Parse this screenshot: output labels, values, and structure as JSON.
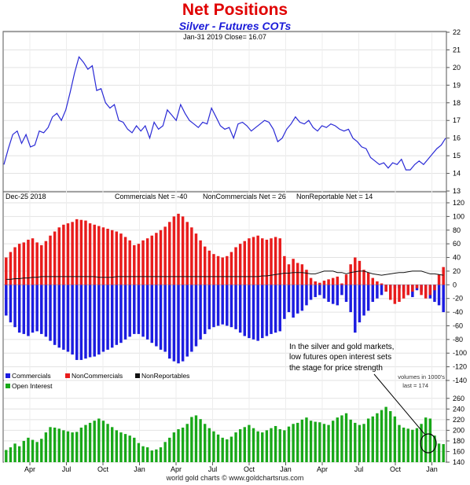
{
  "header": {
    "title": "Net Positions",
    "subtitle": "Silver - Futures COTs"
  },
  "price_panel": {
    "info": "Jan-31  2019  Close= 16.07"
  },
  "cot_panel": {
    "date_label": "Dec-25  2018",
    "commercials_net": "Commercials Net = -40",
    "noncommercials_net": "NonCommercials Net = 26",
    "nonreportable_net": "NonReportable Net = 14",
    "legend": [
      "Commercials",
      "NonCommercials",
      "NonReportables"
    ],
    "annotation": [
      "In the silver and gold markets,",
      "low  futures open interest sets",
      "the stage for price strength"
    ]
  },
  "oi_panel": {
    "legend": "Open Interest",
    "volumes_note": "volumes in 1000's",
    "last_note": "last = 174"
  },
  "footer": "world gold charts © www.goldchartsrus.com",
  "colors": {
    "price_line": "#2a2ad6",
    "commercials": "#1c1ce0",
    "noncommercials": "#e81c1c",
    "nonreportables": "#111111",
    "open_interest": "#18a818",
    "title": "#e00000",
    "subtitle": "#1a1ad8"
  },
  "chart_data": [
    {
      "type": "line",
      "series": [
        {
          "values": [
            14.5,
            15.4,
            16.2,
            16.4,
            15.7,
            16.2,
            15.5,
            15.6,
            16.4,
            16.3,
            16.6,
            17.2,
            17.4,
            17.0,
            17.6,
            18.6,
            19.7,
            20.6,
            20.3,
            19.9,
            20.1,
            18.7,
            18.8,
            18.0,
            17.7,
            17.9,
            17.0,
            16.9,
            16.5,
            16.3,
            16.7,
            16.4,
            16.7,
            16.0,
            16.9,
            16.5,
            16.7,
            17.6,
            17.3,
            17.0,
            17.9,
            17.4,
            17.0,
            16.8,
            16.6,
            16.9,
            16.8,
            17.7,
            17.2,
            16.7,
            16.5,
            16.6,
            16.0,
            16.8,
            16.9,
            16.7,
            16.4,
            16.6,
            16.8,
            17.0,
            16.9,
            16.5,
            15.8,
            16.0,
            16.5,
            16.8,
            17.2,
            16.9,
            16.8,
            17.0,
            16.6,
            16.4,
            16.7,
            16.6,
            16.8,
            16.7,
            16.5,
            16.4,
            16.5,
            16.0,
            15.8,
            15.5,
            15.4,
            14.9,
            14.7,
            14.5,
            14.6,
            14.3,
            14.6,
            14.5,
            14.8,
            14.2,
            14.2,
            14.5,
            14.7,
            14.5,
            14.8,
            15.1,
            15.4,
            15.6,
            16.0
          ]
        }
      ],
      "ylim": [
        13,
        22
      ],
      "yticks": [
        13,
        14,
        15,
        16,
        17,
        18,
        19,
        20,
        21,
        22
      ]
    },
    {
      "type": "bar",
      "series": [
        {
          "name": "Commercials",
          "values": [
            -45,
            -55,
            -62,
            -70,
            -72,
            -75,
            -70,
            -68,
            -72,
            -76,
            -82,
            -88,
            -92,
            -95,
            -98,
            -102,
            -110,
            -110,
            -108,
            -106,
            -105,
            -102,
            -98,
            -95,
            -92,
            -88,
            -85,
            -80,
            -76,
            -72,
            -72,
            -76,
            -80,
            -85,
            -90,
            -95,
            -98,
            -108,
            -112,
            -115,
            -112,
            -105,
            -98,
            -90,
            -80,
            -72,
            -65,
            -62,
            -60,
            -58,
            -60,
            -62,
            -65,
            -70,
            -75,
            -78,
            -80,
            -82,
            -78,
            -75,
            -72,
            -70,
            -68,
            -50,
            -40,
            -48,
            -42,
            -38,
            -30,
            -22,
            -18,
            -15,
            -20,
            -25,
            -28,
            -30,
            -15,
            -25,
            -40,
            -70,
            -55,
            -45,
            -38,
            -25,
            -20,
            -15,
            -10,
            -8,
            -5,
            -5,
            -10,
            -15,
            -18,
            -8,
            -10,
            -15,
            -20,
            -25,
            -30,
            -40
          ]
        },
        {
          "name": "NonCommercials",
          "values": [
            40,
            48,
            55,
            60,
            62,
            66,
            68,
            62,
            58,
            64,
            72,
            78,
            84,
            88,
            90,
            92,
            96,
            95,
            94,
            90,
            88,
            86,
            84,
            82,
            80,
            78,
            75,
            70,
            65,
            58,
            60,
            65,
            68,
            72,
            76,
            80,
            85,
            92,
            100,
            104,
            100,
            92,
            84,
            75,
            65,
            56,
            50,
            45,
            42,
            40,
            42,
            48,
            55,
            60,
            64,
            68,
            70,
            72,
            68,
            66,
            68,
            70,
            68,
            42,
            30,
            38,
            32,
            30,
            22,
            10,
            5,
            3,
            6,
            8,
            10,
            12,
            2,
            15,
            30,
            40,
            35,
            22,
            18,
            10,
            5,
            2,
            -10,
            -22,
            -28,
            -25,
            -20,
            -15,
            -10,
            -5,
            -15,
            -20,
            -15,
            -8,
            15,
            26
          ]
        },
        {
          "name": "NonReportables",
          "values": [
            8,
            8,
            9,
            9,
            10,
            10,
            11,
            11,
            12,
            12,
            12,
            12,
            12,
            12,
            12,
            12,
            12,
            12,
            12,
            12,
            12,
            11,
            11,
            11,
            11,
            12,
            12,
            12,
            12,
            12,
            12,
            12,
            12,
            12,
            12,
            12,
            12,
            12,
            12,
            12,
            12,
            12,
            12,
            12,
            12,
            12,
            12,
            12,
            12,
            12,
            12,
            12,
            12,
            12,
            12,
            12,
            12,
            12,
            13,
            13,
            14,
            15,
            16,
            17,
            17,
            18,
            18,
            18,
            17,
            16,
            16,
            18,
            20,
            20,
            20,
            18,
            18,
            16,
            18,
            19,
            20,
            20,
            18,
            16,
            15,
            14,
            15,
            16,
            17,
            18,
            18,
            19,
            20,
            20,
            20,
            18,
            16,
            16,
            15,
            14
          ]
        }
      ],
      "ylim": [
        -140,
        120
      ],
      "yticks": [
        -140,
        -120,
        -100,
        -80,
        -60,
        -40,
        -20,
        0,
        20,
        40,
        60,
        80,
        100,
        120
      ]
    },
    {
      "type": "bar",
      "series": [
        {
          "name": "Open Interest",
          "values": [
            163,
            168,
            175,
            170,
            180,
            186,
            182,
            178,
            184,
            196,
            206,
            205,
            203,
            200,
            198,
            196,
            197,
            205,
            210,
            214,
            218,
            222,
            218,
            212,
            206,
            200,
            196,
            193,
            190,
            186,
            176,
            170,
            168,
            162,
            164,
            168,
            178,
            186,
            196,
            202,
            205,
            212,
            225,
            228,
            221,
            212,
            204,
            198,
            192,
            186,
            183,
            188,
            196,
            202,
            206,
            210,
            204,
            198,
            196,
            200,
            204,
            208,
            202,
            200,
            207,
            212,
            214,
            220,
            224,
            218,
            216,
            215,
            212,
            210,
            218,
            224,
            228,
            232,
            220,
            214,
            210,
            212,
            222,
            226,
            232,
            238,
            244,
            236,
            226,
            210,
            205,
            203,
            201,
            204,
            212,
            224,
            222,
            190,
            175,
            174
          ]
        }
      ],
      "ylim": [
        140,
        270
      ],
      "yticks": [
        140,
        160,
        180,
        200,
        220,
        240,
        260
      ]
    }
  ],
  "x_axis": {
    "tick_labels": [
      "Apr",
      "Jul",
      "Oct",
      "Jan",
      "Apr",
      "Jul",
      "Oct",
      "Jan",
      "Apr",
      "Jul",
      "Oct",
      "Jan"
    ]
  }
}
